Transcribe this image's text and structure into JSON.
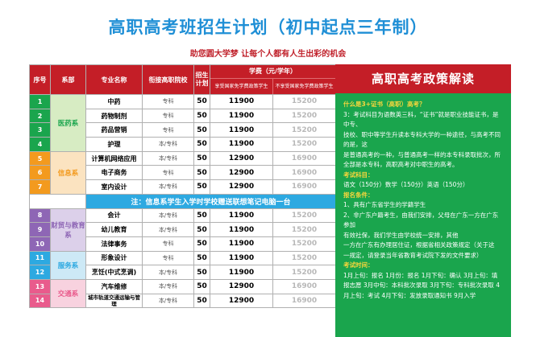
{
  "title": "高职高考班招生计划（初中起点三年制）",
  "subtitle": "助您圆大学梦 让每个人都有人生出彩的机会",
  "table": {
    "headers": {
      "no": "序号",
      "dept": "系部",
      "major": "专业名称",
      "level": "衔接高职院校",
      "count": "招生计划",
      "tuition": "学费（元/学年）",
      "fee1": "享受国家免学费政策学生",
      "fee2": "不享受国家免学费政策学生"
    },
    "departments": [
      "医药系",
      "信息系",
      "财贸与教育系",
      "服务系",
      "交通系"
    ],
    "rows": [
      {
        "no": "1",
        "major": "中药",
        "level": "专科",
        "count": "50",
        "fee1": "11900",
        "fee2": "15200"
      },
      {
        "no": "2",
        "major": "药物制剂",
        "level": "专科",
        "count": "50",
        "fee1": "11900",
        "fee2": "15200"
      },
      {
        "no": "3",
        "major": "药品营销",
        "level": "专科",
        "count": "50",
        "fee1": "11900",
        "fee2": "15200"
      },
      {
        "no": "4",
        "major": "护理",
        "level": "本/专科",
        "count": "50",
        "fee1": "11900",
        "fee2": "15200"
      },
      {
        "no": "5",
        "major": "计算机网络应用",
        "level": "本/专科",
        "count": "50",
        "fee1": "12900",
        "fee2": "16900"
      },
      {
        "no": "6",
        "major": "电子商务",
        "level": "专科",
        "count": "50",
        "fee1": "12900",
        "fee2": "16900"
      },
      {
        "no": "7",
        "major": "室内设计",
        "level": "本/专科",
        "count": "50",
        "fee1": "12900",
        "fee2": "16900"
      },
      {
        "no": "8",
        "major": "会计",
        "level": "本/专科",
        "count": "50",
        "fee1": "11900",
        "fee2": "15200"
      },
      {
        "no": "9",
        "major": "幼儿教育",
        "level": "本/专科",
        "count": "50",
        "fee1": "11900",
        "fee2": "15200"
      },
      {
        "no": "10",
        "major": "法律事务",
        "level": "专科",
        "count": "50",
        "fee1": "11900",
        "fee2": "15200"
      },
      {
        "no": "11",
        "major": "形象设计",
        "level": "专科",
        "count": "50",
        "fee1": "11900",
        "fee2": "15200"
      },
      {
        "no": "12",
        "major": "烹饪(中式烹调)",
        "level": "本/专科",
        "count": "50",
        "fee1": "11900",
        "fee2": "15200"
      },
      {
        "no": "13",
        "major": "汽车维修",
        "level": "本/专科",
        "count": "50",
        "fee1": "12900",
        "fee2": "16900"
      },
      {
        "no": "14",
        "major": "城市轨道交通运输与管理",
        "level": "本/专科",
        "count": "50",
        "fee1": "12900",
        "fee2": "16900"
      }
    ],
    "note": "注：信息系学生入学时学校赠送联想笔记电脑一台"
  },
  "colors": {
    "header_red": "#c41e27",
    "dept_green": "#1aa54d",
    "dept_orange": "#f39a1e",
    "dept_purple": "#8e66b5",
    "dept_blue": "#2da9e1",
    "dept_pink": "#e95b8c",
    "dept_light_green": "#d7ecc3",
    "dept_light_orange": "#fbe3c0",
    "dept_light_purple": "#dcd0ea",
    "dept_light_blue": "#cde9f6",
    "dept_light_pink": "#f8d2df",
    "panel_green": "#1aa54d",
    "highlight_yellow": "#f7d63c"
  },
  "policy": {
    "heading": "高职高考政策解读",
    "lines": [
      {
        "h": true,
        "text": "什么是3+证书（高职）高考？"
      },
      {
        "h": false,
        "text": "3：考试科目为语数英三科，“证书”就是职业技能证书，是中专、"
      },
      {
        "h": false,
        "text": "技校、职中等学生升读本专科大学的一种途径，与高考不同的是，这"
      },
      {
        "h": false,
        "text": "是普通高考的一种，与普通高考一样的本专科录取批次，所"
      },
      {
        "h": false,
        "text": "全部是本专科，高职高考对中职生的高考。"
      },
      {
        "h": true,
        "text": "考试科目："
      },
      {
        "h": false,
        "text": "语文（150分）数学（150分）英语（150分）"
      },
      {
        "h": true,
        "text": "报名条件："
      },
      {
        "h": false,
        "text": "1、具有广东省学生的学籍学生"
      },
      {
        "h": false,
        "text": "2、非广东户籍考生，由我们安排，父母在广东一方在广东参加"
      },
      {
        "h": false,
        "text": "有效社保，我们学生由学校统一安排，其他"
      },
      {
        "h": false,
        "text": "一方在广东有办理居住证，根据省相关政策规定（关于这"
      },
      {
        "h": false,
        "text": "一规定，请登录当年省教育考试院下发的文件要求）"
      },
      {
        "h": true,
        "text": "考试时间："
      },
      {
        "h": false,
        "text": "1月上旬：报名 1月份：报名 1月下旬：确认 3月上旬：填报志愿 3月中旬：本科批次录取 3月下旬：专科批次录取 4月上旬：考试 4月下旬：发放录取通知书 9月入学"
      }
    ]
  }
}
